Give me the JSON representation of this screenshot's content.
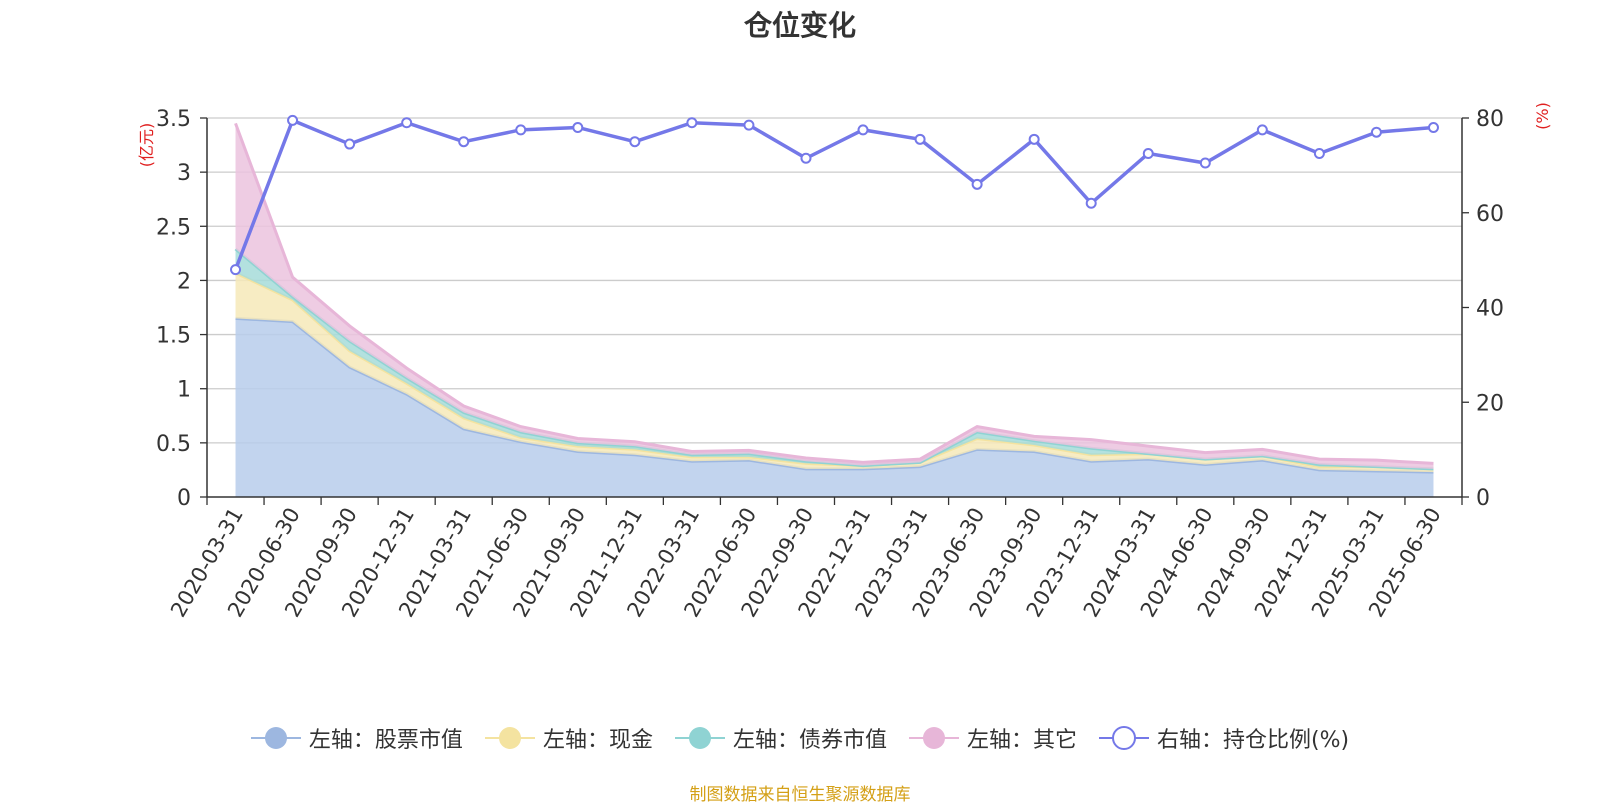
{
  "title": "仓位变化",
  "source": "制图数据来自恒生聚源数据库",
  "chart_data": {
    "type": "area",
    "title": "仓位变化",
    "x": [
      "2020-03-31",
      "2020-06-30",
      "2020-09-30",
      "2020-12-31",
      "2021-03-31",
      "2021-06-30",
      "2021-09-30",
      "2021-12-31",
      "2022-03-31",
      "2022-06-30",
      "2022-09-30",
      "2022-12-31",
      "2023-03-31",
      "2023-06-30",
      "2023-09-30",
      "2023-12-31",
      "2024-03-31",
      "2024-06-30",
      "2024-09-30",
      "2024-12-31",
      "2025-03-31",
      "2025-06-30"
    ],
    "y_left": {
      "label": "(亿元)",
      "ylim": [
        0,
        3.5
      ],
      "ticks": [
        0,
        0.5,
        1,
        1.5,
        2,
        2.5,
        3,
        3.5
      ],
      "tick_labels": [
        "0",
        "0.5",
        "1",
        "1.5",
        "2",
        "2.5",
        "3",
        "3.5"
      ]
    },
    "y_right": {
      "label": "(%)",
      "ylim": [
        0,
        80
      ],
      "ticks": [
        0,
        20,
        40,
        60,
        80
      ],
      "tick_labels": [
        "0",
        "20",
        "40",
        "60",
        "80"
      ]
    },
    "stack_series": [
      {
        "name": "左轴：股票市值",
        "color": "#9db7e0",
        "fill": "#b7cceb",
        "values": [
          1.65,
          1.62,
          1.2,
          0.95,
          0.63,
          0.51,
          0.42,
          0.39,
          0.33,
          0.34,
          0.26,
          0.26,
          0.28,
          0.44,
          0.42,
          0.33,
          0.35,
          0.3,
          0.34,
          0.25,
          0.24,
          0.23
        ]
      },
      {
        "name": "左轴：现金",
        "color": "#f4e3a0",
        "fill": "#f6e9b8",
        "values": [
          0.42,
          0.2,
          0.15,
          0.1,
          0.1,
          0.04,
          0.05,
          0.05,
          0.04,
          0.03,
          0.05,
          0.03,
          0.04,
          0.1,
          0.06,
          0.06,
          0.05,
          0.05,
          0.04,
          0.03,
          0.04,
          0.03
        ]
      },
      {
        "name": "左轴：债券市值",
        "color": "#8fd3d3",
        "fill": "#a6dcd9",
        "values": [
          0.22,
          0.03,
          0.09,
          0.05,
          0.05,
          0.05,
          0.03,
          0.03,
          0.02,
          0.03,
          0.02,
          0.0,
          0.0,
          0.06,
          0.04,
          0.06,
          0.0,
          0.0,
          0.0,
          0.02,
          0.0,
          0.0
        ]
      },
      {
        "name": "左轴：其它",
        "color": "#e7b6d8",
        "fill": "#ebc3de",
        "values": [
          1.16,
          0.18,
          0.14,
          0.09,
          0.06,
          0.05,
          0.04,
          0.04,
          0.03,
          0.03,
          0.03,
          0.03,
          0.03,
          0.05,
          0.04,
          0.08,
          0.07,
          0.06,
          0.06,
          0.05,
          0.06,
          0.05
        ]
      }
    ],
    "line_series": {
      "name": "右轴：持仓比例(%)",
      "color": "#7478e8",
      "values": [
        48,
        79.5,
        74.5,
        79,
        75,
        77.5,
        78,
        75,
        79,
        78.5,
        71.5,
        77.5,
        75.5,
        66,
        75.5,
        62,
        72.5,
        70.5,
        77.5,
        72.5,
        77,
        78
      ]
    },
    "grid": true,
    "legend_position": "bottom"
  }
}
